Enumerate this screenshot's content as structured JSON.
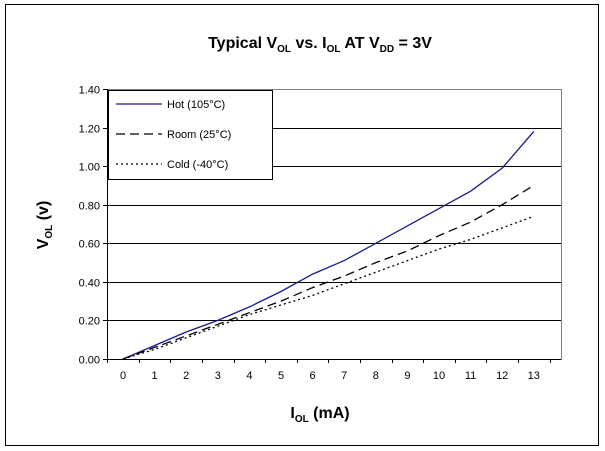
{
  "chart_data": {
    "type": "line",
    "title": {
      "prefix": "Typical V",
      "sub1": "OL",
      "mid1": " vs. I",
      "sub2": "OL",
      "mid2": " AT V",
      "sub3": "DD",
      "suffix": " = 3V"
    },
    "xlabel": {
      "main": "I",
      "sub": "OL",
      "suffix": " (mA)"
    },
    "ylabel": {
      "main": "V",
      "sub": "OL",
      "suffix": " (v)"
    },
    "xlim": [
      0,
      13
    ],
    "ylim": [
      0,
      1.4
    ],
    "x_ticks": [
      "0",
      "1",
      "2",
      "3",
      "4",
      "5",
      "6",
      "7",
      "8",
      "9",
      "10",
      "11",
      "12",
      "13"
    ],
    "y_ticks": [
      "0.00",
      "0.20",
      "0.40",
      "0.60",
      "0.80",
      "1.00",
      "1.20",
      "1.40"
    ],
    "grid": "horizontal",
    "legend_position": "top-left",
    "x": [
      0,
      1,
      2,
      3,
      4,
      5,
      6,
      7,
      8,
      9,
      10,
      11,
      12,
      13
    ],
    "series": [
      {
        "name": "Hot (105°C)",
        "style": "solid",
        "color": "#1a1a8c",
        "values": [
          0.0,
          0.07,
          0.14,
          0.2,
          0.27,
          0.35,
          0.44,
          0.51,
          0.6,
          0.69,
          0.78,
          0.87,
          0.99,
          1.18
        ]
      },
      {
        "name": "Room (25°C)",
        "style": "dashed",
        "color": "#000000",
        "values": [
          0.0,
          0.06,
          0.12,
          0.18,
          0.24,
          0.3,
          0.37,
          0.43,
          0.5,
          0.56,
          0.64,
          0.71,
          0.8,
          0.9
        ]
      },
      {
        "name": "Cold (-40°C)",
        "style": "dotted",
        "color": "#000000",
        "values": [
          0.0,
          0.05,
          0.11,
          0.17,
          0.23,
          0.28,
          0.33,
          0.39,
          0.45,
          0.51,
          0.57,
          0.62,
          0.68,
          0.74
        ]
      }
    ]
  }
}
